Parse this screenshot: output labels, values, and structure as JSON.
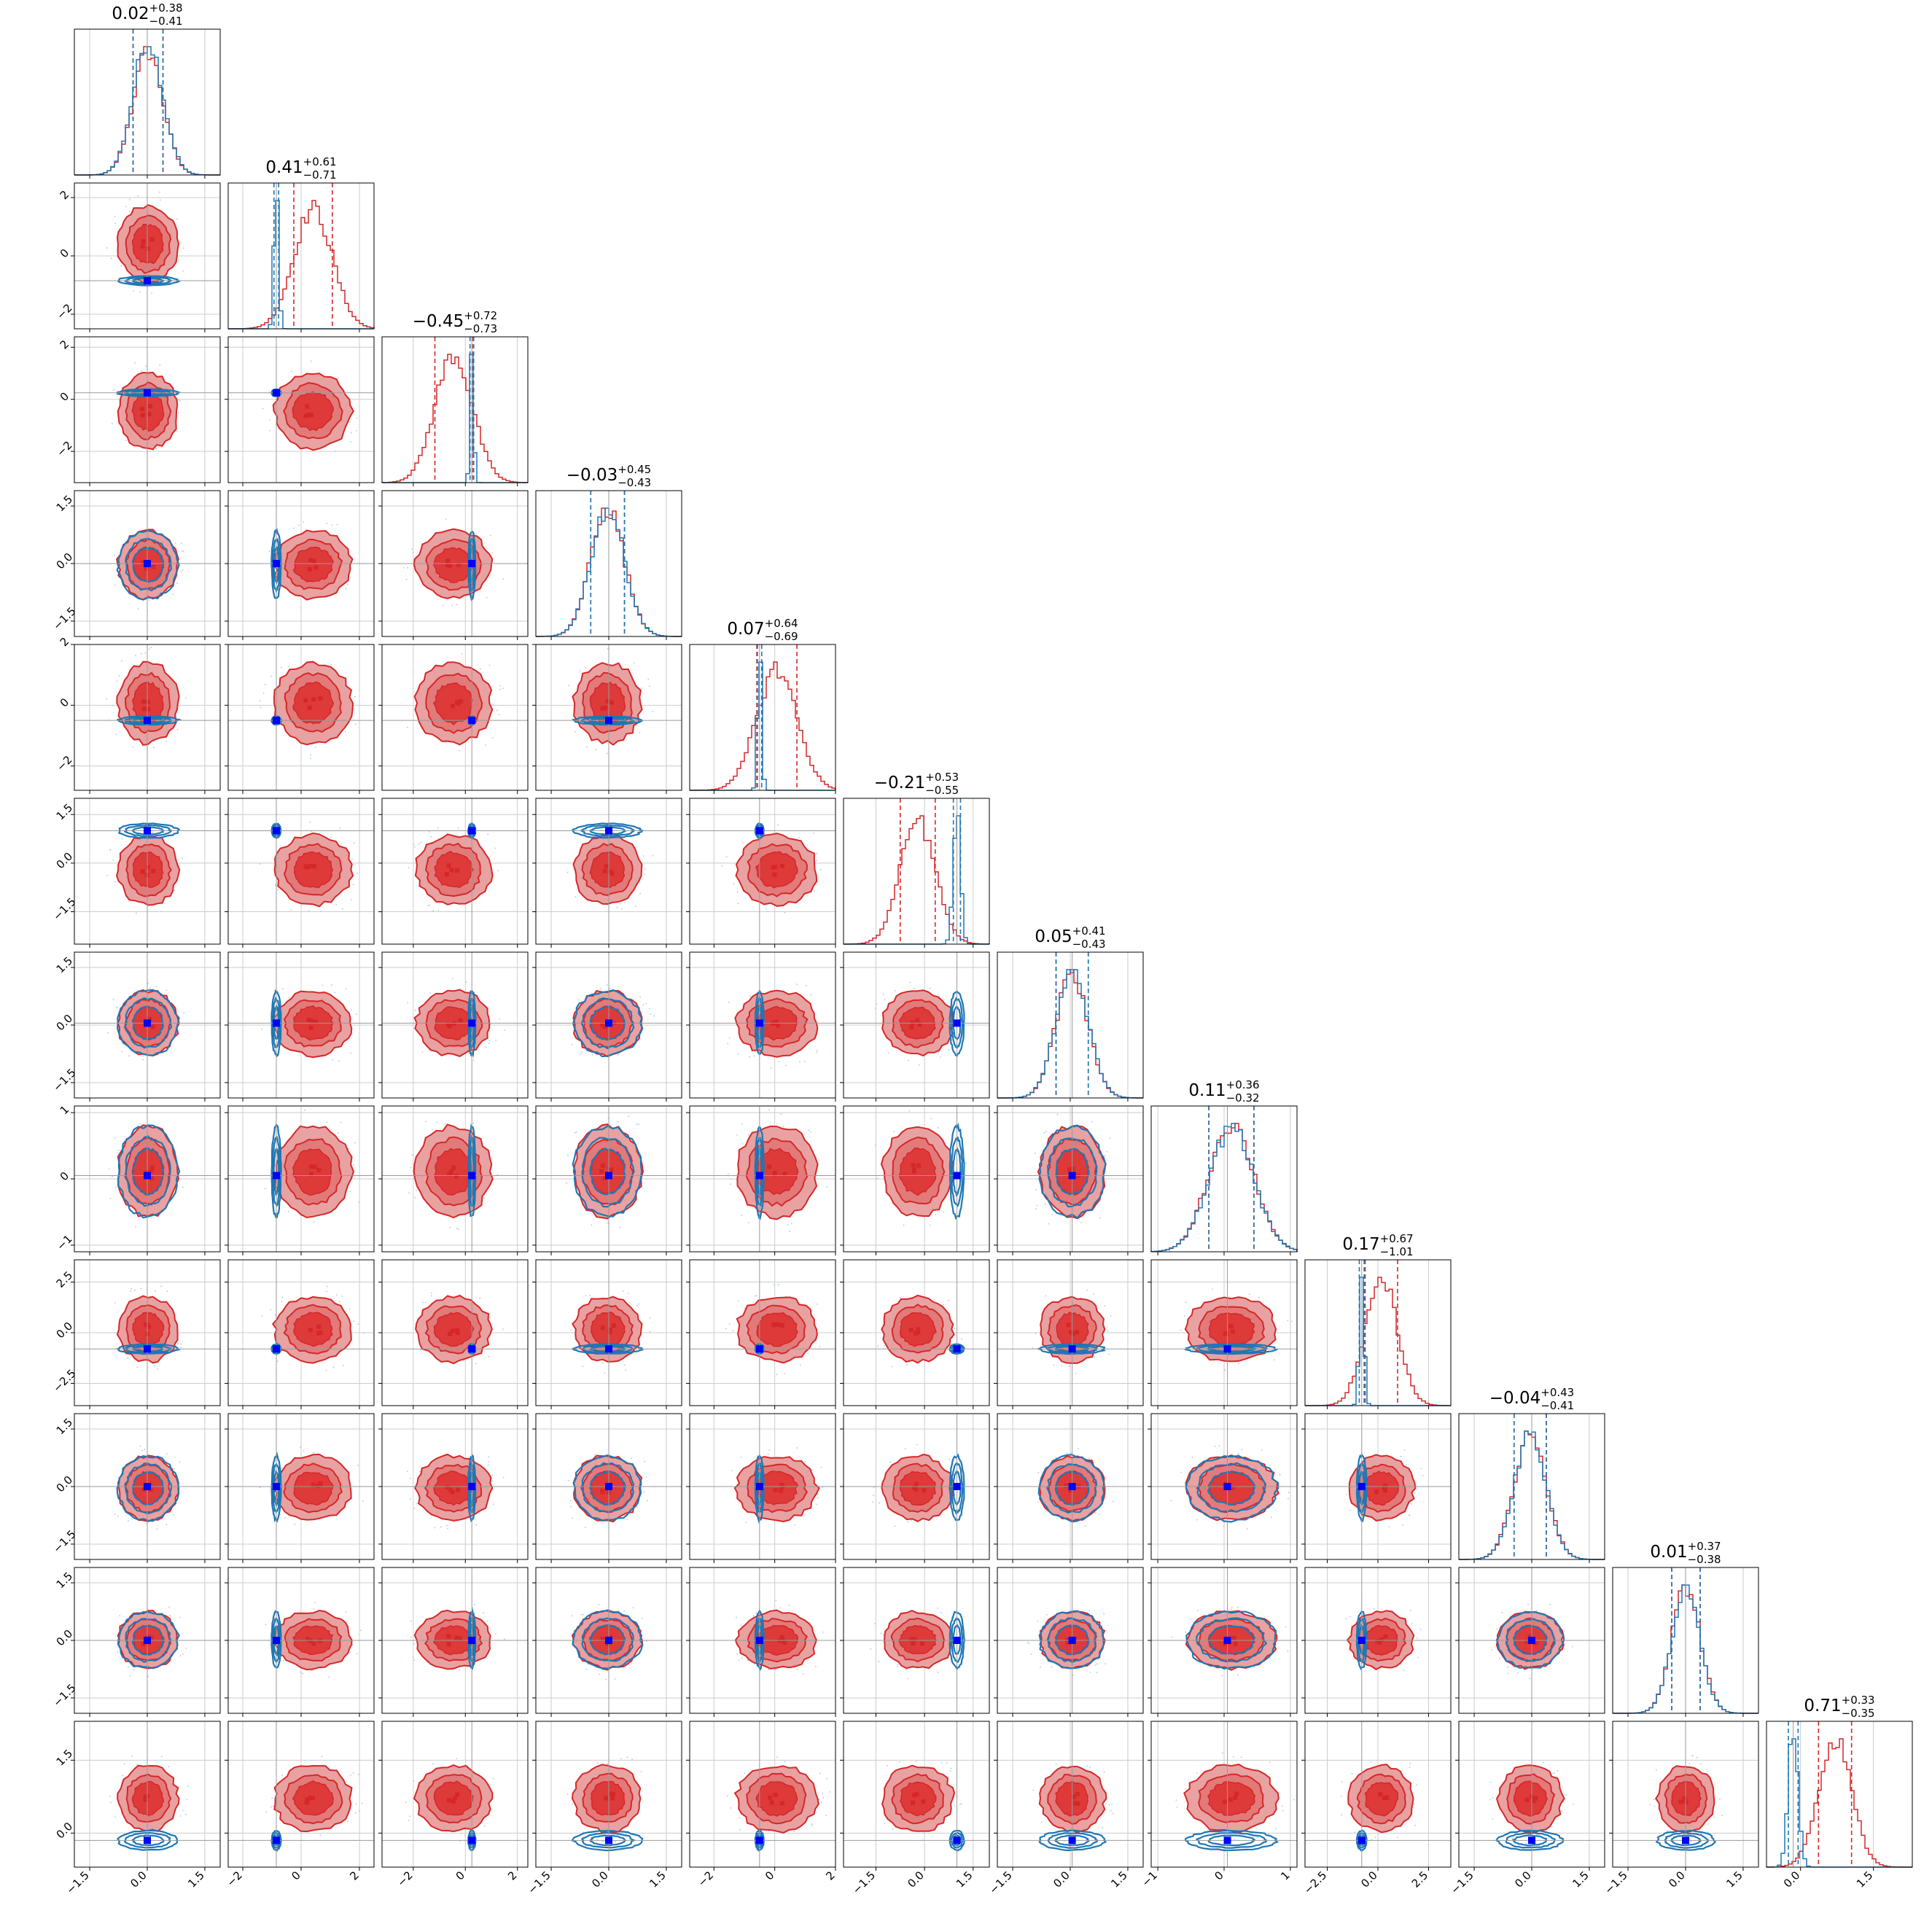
{
  "colors": {
    "red": "#d62728",
    "blue": "#1f77b4",
    "marker": "#0000ff",
    "redfill1": "#e8a2a2",
    "redfill2": "#de3a3a"
  },
  "chart_data": {
    "type": "corner",
    "n_params": 12,
    "series": [
      {
        "color": "#d62728"
      },
      {
        "color": "#1f77b4"
      }
    ],
    "marginal_titles": [
      {
        "median": "0.02",
        "plus": "+0.38",
        "minus": "−0.41"
      },
      {
        "median": "0.41",
        "plus": "+0.61",
        "minus": "−0.71"
      },
      {
        "median": "−0.45",
        "plus": "+0.72",
        "minus": "−0.73"
      },
      {
        "median": "−0.03",
        "plus": "+0.45",
        "minus": "−0.43"
      },
      {
        "median": "0.07",
        "plus": "+0.64",
        "minus": "−0.69"
      },
      {
        "median": "−0.21",
        "plus": "+0.53",
        "minus": "−0.55"
      },
      {
        "median": "0.05",
        "plus": "+0.41",
        "minus": "−0.43"
      },
      {
        "median": "0.11",
        "plus": "+0.36",
        "minus": "−0.32"
      },
      {
        "median": "0.17",
        "plus": "+0.67",
        "minus": "−1.01"
      },
      {
        "median": "−0.04",
        "plus": "+0.43",
        "minus": "−0.41"
      },
      {
        "median": "0.01",
        "plus": "+0.37",
        "minus": "−0.38"
      },
      {
        "median": "0.71",
        "plus": "+0.33",
        "minus": "−0.35"
      }
    ],
    "ranges": [
      [
        -1.9,
        1.9
      ],
      [
        -2.5,
        2.5
      ],
      [
        -3.2,
        2.4
      ],
      [
        -1.9,
        1.9
      ],
      [
        -2.8,
        2.0
      ],
      [
        -2.5,
        2.0
      ],
      [
        -1.9,
        1.9
      ],
      [
        -1.1,
        1.1
      ],
      [
        -3.6,
        3.6
      ],
      [
        -1.9,
        1.9
      ],
      [
        -1.9,
        1.9
      ],
      [
        -0.7,
        2.3
      ]
    ],
    "x_ticks": [
      [
        -1.5,
        0.0,
        1.5
      ],
      [
        -2,
        0,
        2
      ],
      [
        -2,
        0,
        2
      ],
      [
        -1.5,
        0.0,
        1.5
      ],
      [
        -2,
        0,
        2
      ],
      [
        -1.5,
        0.0,
        1.5
      ],
      [
        -1.5,
        0.0,
        1.5
      ],
      [
        -1,
        0,
        1
      ],
      [
        -2.5,
        0.0,
        2.5
      ],
      [
        -1.5,
        0.0,
        1.5
      ],
      [
        -1.5,
        0.0,
        1.5
      ],
      [
        0.0,
        1.5
      ]
    ],
    "x_tick_labels": [
      [
        "−1.5",
        "0.0",
        "1.5"
      ],
      [
        "−2",
        "0",
        "2"
      ],
      [
        "−2",
        "0",
        "2"
      ],
      [
        "−1.5",
        "0.0",
        "1.5"
      ],
      [
        "−2",
        "0",
        "2"
      ],
      [
        "−1.5",
        "0.0",
        "1.5"
      ],
      [
        "−1.5",
        "0.0",
        "1.5"
      ],
      [
        "−1",
        "0",
        "1"
      ],
      [
        "−2.5",
        "0.0",
        "2.5"
      ],
      [
        "−1.5",
        "0.0",
        "1.5"
      ],
      [
        "−1.5",
        "0.0",
        "1.5"
      ],
      [
        "0.0",
        "1.5"
      ]
    ],
    "y_ticks": [
      [],
      [
        -2,
        0,
        2
      ],
      [
        -2,
        0,
        2
      ],
      [
        -1.5,
        0.0,
        1.5
      ],
      [
        -2,
        0,
        2
      ],
      [
        -1.5,
        0.0,
        1.5
      ],
      [
        -1.5,
        0.0,
        1.5
      ],
      [
        -1,
        0,
        1
      ],
      [
        -2.5,
        0.0,
        2.5
      ],
      [
        -1.5,
        0.0,
        1.5
      ],
      [
        -1.5,
        0.0,
        1.5
      ],
      [
        0.0,
        1.5
      ]
    ],
    "y_tick_labels": [
      [],
      [
        "−2",
        "0",
        "2"
      ],
      [
        "−2",
        "0",
        "2"
      ],
      [
        "−1.5",
        "0.0",
        "1.5"
      ],
      [
        "−2",
        "0",
        "2"
      ],
      [
        "−1.5",
        "0.0",
        "1.5"
      ],
      [
        "−1.5",
        "0.0",
        "1.5"
      ],
      [
        "−1",
        "0",
        "1"
      ],
      [
        "−2.5",
        "0.0",
        "2.5"
      ],
      [
        "−1.5",
        "0.0",
        "1.5"
      ],
      [
        "−1.5",
        "0.0",
        "1.5"
      ],
      [
        "0.0",
        "1.5"
      ]
    ],
    "red_posterior": {
      "median": [
        0.02,
        0.41,
        -0.45,
        -0.03,
        0.07,
        -0.21,
        0.05,
        0.11,
        0.17,
        -0.04,
        0.01,
        0.71
      ],
      "sigma": [
        0.39,
        0.66,
        0.72,
        0.44,
        0.66,
        0.54,
        0.42,
        0.34,
        0.8,
        0.42,
        0.37,
        0.34
      ]
    },
    "blue_posterior": {
      "median": [
        0.02,
        -0.85,
        0.25,
        -0.03,
        -0.5,
        1.0,
        0.05,
        0.11,
        -0.8,
        -0.04,
        0.01,
        -0.15
      ],
      "sigma": [
        0.39,
        0.08,
        0.07,
        0.44,
        0.07,
        0.11,
        0.42,
        0.34,
        0.12,
        0.42,
        0.37,
        0.1
      ]
    },
    "truth": [
      0.0,
      -0.85,
      0.25,
      0.0,
      -0.5,
      1.0,
      0.05,
      0.05,
      -0.8,
      0.0,
      0.0,
      -0.15
    ],
    "grid": true
  }
}
